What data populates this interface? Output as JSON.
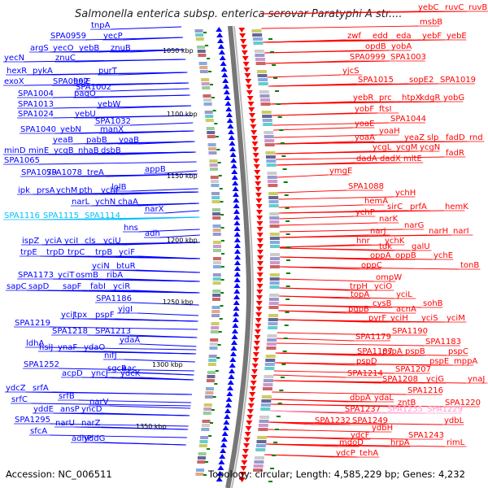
{
  "title": "Salmonella enterica subsp. enterica serovar Paratyphi A str....",
  "footer": {
    "accession": "Accession: NC_006511",
    "summary": "Topology: circular; Length: 4,585,229 bp; Genes: 4,232"
  },
  "colors": {
    "left_strand": "#0000ff",
    "right_strand": "#ff0000",
    "highlight": "#00bfff",
    "highlight_right": "#ff99cc",
    "ticks": "#008000",
    "backbone": "#888888"
  },
  "scale_labels": [
    "1050 kbp",
    "1100 kbp",
    "1150 kbp",
    "1200 kbp",
    "1250 kbp",
    "1300 kbp",
    "1350 kbp"
  ],
  "left_labels": [
    "tnpA",
    "SPA0959",
    "yecP",
    "argS",
    "yecO",
    "yebB",
    "znuB",
    "yecN",
    "znuC",
    "hexR",
    "pykA",
    "purT",
    "exoX",
    "SPA0992",
    "holE",
    "SPA1002",
    "SPA1004",
    "pagO",
    "SPA1013",
    "yebW",
    "SPA1024",
    "yebU",
    "SPA1032",
    "SPA1040",
    "yebN",
    "manX",
    "yeaB",
    "pabB",
    "yoaB",
    "minD",
    "minE",
    "ycgB",
    "nhaB",
    "dsbB",
    "SPA1065",
    "appB",
    "SPA1079",
    "SPA1078",
    "treA",
    "lolB",
    "ipk",
    "prsA",
    "ychM",
    "pth",
    "ychF",
    "narL",
    "ychN",
    "chaA",
    "narX",
    "SPA1116",
    "SPA1115",
    "SPA1114",
    "hns",
    "adh",
    "ispZ",
    "yciA",
    "yciI",
    "cls",
    "yciU",
    "trpE",
    "trpD",
    "trpC",
    "trpB",
    "yciF",
    "yciN",
    "btuR",
    "SPA1173",
    "yciT",
    "osmB",
    "ribA",
    "sapC",
    "sapD",
    "sapF",
    "fabI",
    "yciR",
    "SPA1186",
    "yjgI",
    "yciJ",
    "tpx",
    "pspF",
    "SPA1219",
    "SPA1218",
    "SPA1213",
    "ydaA",
    "ldhA",
    "hslJ",
    "ynaF",
    "ydaO",
    "nifJ",
    "SPA1252",
    "sgcR",
    "aac",
    "acpD",
    "yncJ",
    "ydcK",
    "ydcZ",
    "srfA",
    "srfB",
    "srfC",
    "narV",
    "yddE",
    "ansP",
    "yncD",
    "SPA1295",
    "narU",
    "narZ",
    "sfcA",
    "adhP",
    "yddG"
  ],
  "right_labels": [
    "yebC",
    "ruvC",
    "ruvB",
    "msbB",
    "zwf",
    "edd",
    "eda",
    "yebF",
    "yebE",
    "opdB",
    "yobA",
    "SPA0999",
    "SPA1003",
    "yjcS",
    "SPA1015",
    "sopE2",
    "SPA1019",
    "yebR",
    "prc",
    "htpX",
    "kdgR",
    "yobG",
    "yobF",
    "ftsI",
    "SPA1044",
    "yoaE",
    "yoaH",
    "yoaA",
    "yeaZ",
    "slp",
    "fadD",
    "rnd",
    "ycgL",
    "ycgM",
    "ycgN",
    "fadR",
    "dadA",
    "dadX",
    "mltE",
    "ymgE",
    "SPA1088",
    "ychH",
    "hemA",
    "sirC",
    "prfA",
    "hemK",
    "ychP",
    "narK",
    "narG",
    "narJ",
    "narH",
    "narI",
    "hnr",
    "ychK",
    "tdk",
    "galU",
    "oppA",
    "oppB",
    "ychE",
    "oppC",
    "tonB",
    "ompW",
    "trpH",
    "yciO",
    "topA",
    "yciL",
    "cysB",
    "sohB",
    "pgpB",
    "acnA",
    "pyrF",
    "yciH",
    "yciS",
    "yciM",
    "SPA1190",
    "SPA1179",
    "SPA1183",
    "SPA1187",
    "pspA",
    "pspB",
    "pspC",
    "pspD",
    "pspE",
    "mppA",
    "SPA1207",
    "SPA1214",
    "SPA1208",
    "ycjG",
    "ynaJ",
    "SPA1216",
    "dbpA",
    "ydaL",
    "zntB",
    "SPA1220",
    "SPA1237",
    "SPA1235",
    "SPA1229",
    "SPA1232",
    "SPA1249",
    "ydbL",
    "ydbH",
    "ydcF",
    "SPA1243",
    "mdoD",
    "hrpA",
    "rimL",
    "ydcP",
    "tehA"
  ]
}
